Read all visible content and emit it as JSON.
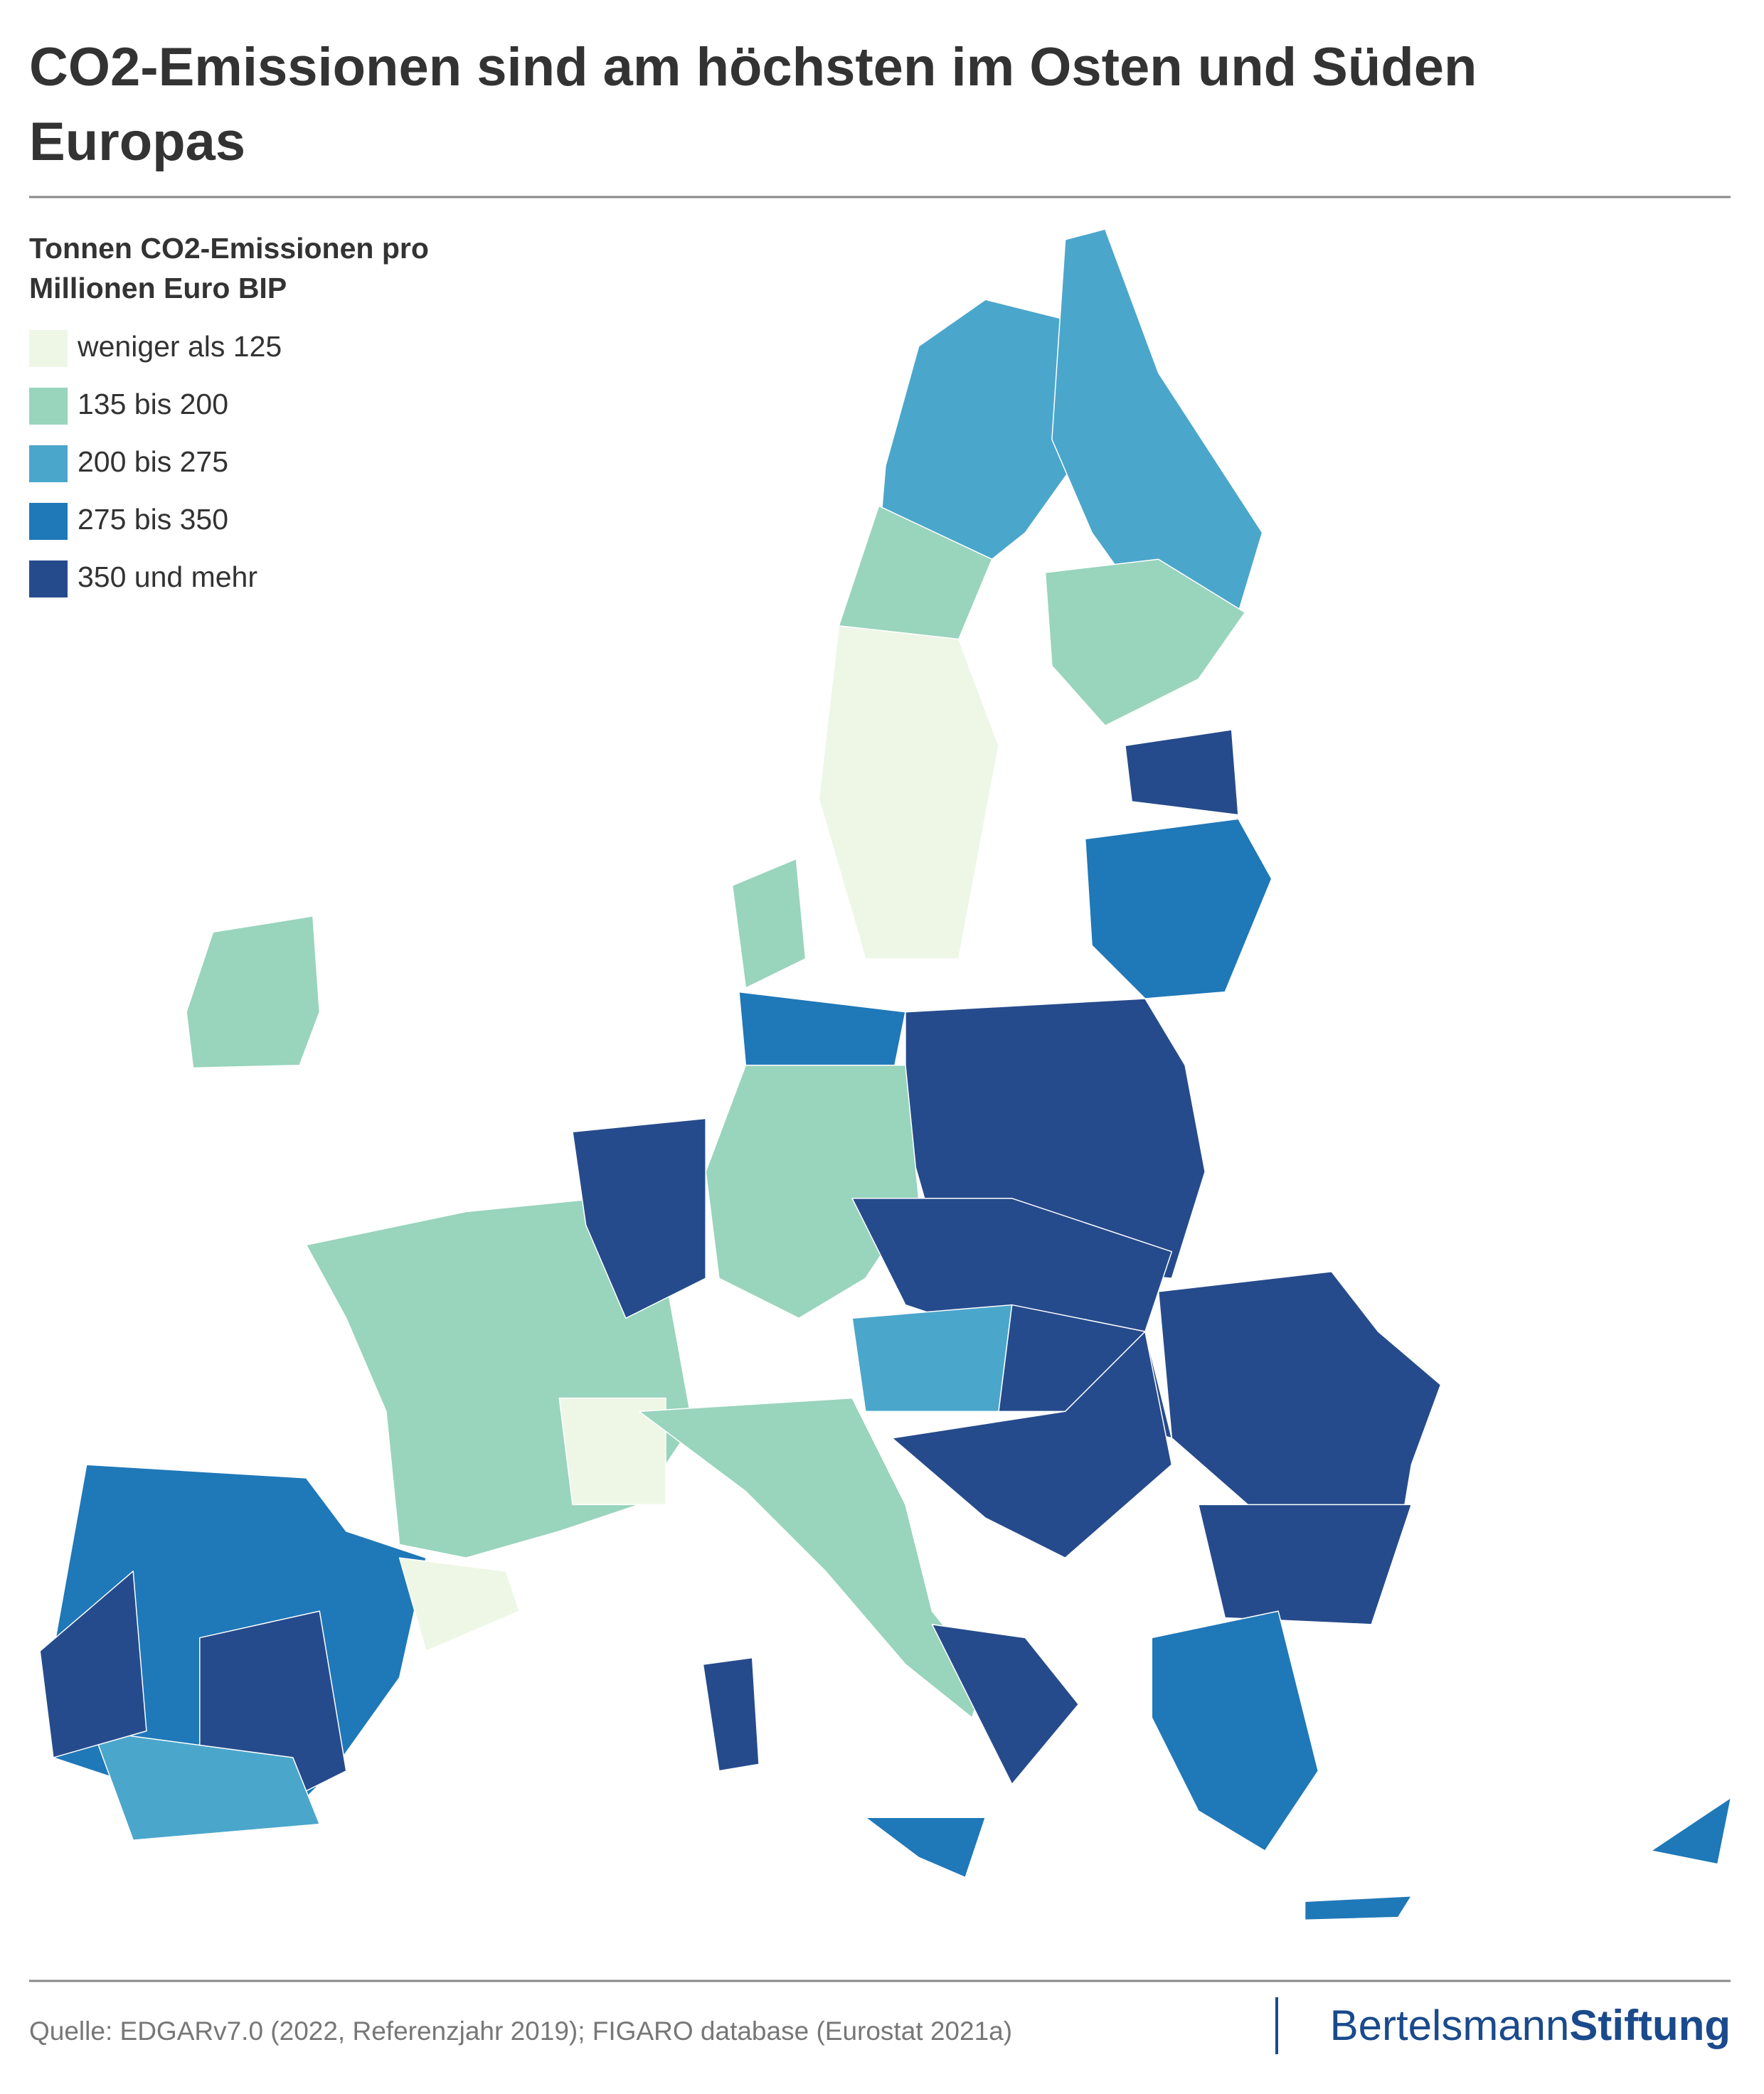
{
  "header": {
    "title_line1": "CO2-Emissionen sind am höchsten im Osten und Süden",
    "title_line2": "Europas"
  },
  "legend": {
    "title_line1": "Tonnen CO2-Emissionen pro",
    "title_line2": "Millionen Euro BIP",
    "items": [
      {
        "label": "weniger als 125",
        "color": "#eef7e6"
      },
      {
        "label": "135 bis 200",
        "color": "#99d4bd"
      },
      {
        "label": "200 bis 275",
        "color": "#4ba6cb"
      },
      {
        "label": "275 bis 350",
        "color": "#1f78b8"
      },
      {
        "label": "350 und mehr",
        "color": "#264b8c"
      }
    ]
  },
  "footer": {
    "source": "Quelle: EDGARv7.0 (2022, Referenzjahr 2019); FIGARO database (Eurostat 2021a)",
    "logo_part1": "Bertelsmann",
    "logo_part2": "Stiftung"
  }
}
